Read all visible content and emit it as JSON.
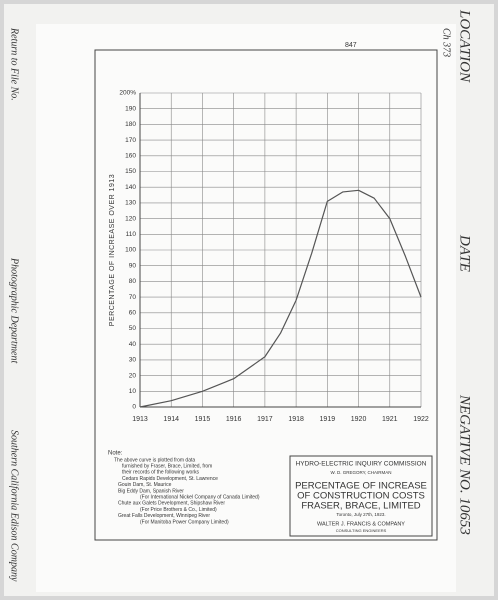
{
  "photo": {
    "left_top": "Return to File No.",
    "left_middle": "Photographic Department",
    "left_bottom": "Southern California Edison Company",
    "right_top": "LOCATION",
    "right_middle": "DATE",
    "right_bottom": "NEGATIVE NO. 10653",
    "file_mark": "Ch 373",
    "sheet_number": "847"
  },
  "chart_data": {
    "type": "line",
    "y_label": "PERCENTAGE OF INCREASE OVER 1913",
    "x": [
      1913,
      1914,
      1915,
      1916,
      1917,
      1917.5,
      1918,
      1918.5,
      1919,
      1919.5,
      1920,
      1920.5,
      1921,
      1921.5,
      1922
    ],
    "series": [
      {
        "color": "#555555",
        "values": [
          0,
          4,
          10,
          18,
          32,
          47,
          68,
          98,
          131,
          137,
          138,
          133,
          120,
          96,
          70
        ]
      }
    ],
    "xlim": [
      1913,
      1922
    ],
    "xticks": [
      1913,
      1914,
      1915,
      1916,
      1917,
      1918,
      1919,
      1920,
      1921,
      1922
    ],
    "ylim": [
      0,
      200
    ],
    "yticks": [
      0,
      10,
      20,
      30,
      40,
      50,
      60,
      70,
      80,
      90,
      100,
      110,
      120,
      130,
      140,
      150,
      160,
      170,
      180,
      190,
      {
        "value": 200,
        "label": "200%"
      }
    ],
    "grid": true
  },
  "note": {
    "heading": "Note:",
    "lines": [
      "The above curve is plotted from data",
      "furnished by Fraser, Brace, Limited, from",
      "their records of the following works",
      "Cedars Rapids Development, St. Lawrence",
      "Gouin Dam, St. Maurice",
      "Big Eddy Dam, Spanish River",
      "(For International Nickel Company of Canada Limited)",
      "Chute aux Galets Development, Shipshaw River",
      "(For Price Brothers & Co., Limited)",
      "Great Falls Development, Winnipeg River",
      "(For Manitoba Power Company Limited)"
    ]
  },
  "title_block": {
    "commission": "HYDRO-ELECTRIC INQUIRY COMMISSION",
    "chairman": "W. D. GREGORY, CHAIRMAN",
    "title_lines": [
      "PERCENTAGE OF INCREASE",
      "OF CONSTRUCTION COSTS",
      "FRASER, BRACE, LIMITED"
    ],
    "date": "Toronto, July 27th, 1923.",
    "firm": "WALTER J. FRANCIS & COMPANY",
    "firm_role": "CONSULTING ENGINEERS"
  }
}
